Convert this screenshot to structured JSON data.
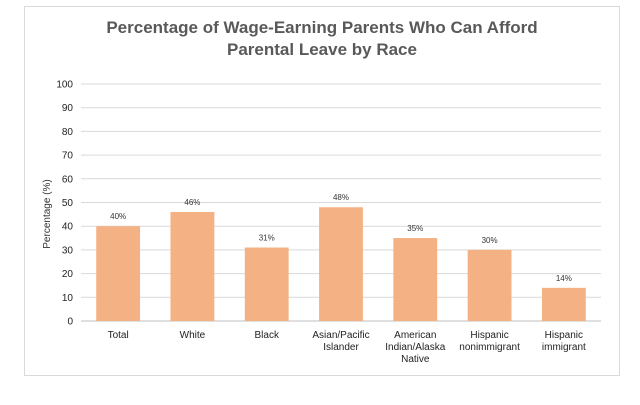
{
  "chart_data": {
    "type": "bar",
    "title_lines": [
      "Percentage of Wage-Earning Parents Who Can Afford",
      "Parental Leave by Race"
    ],
    "ylabel": "Percentage (%)",
    "xlabel": "",
    "ylim": [
      0,
      100
    ],
    "yticks": [
      0,
      10,
      20,
      30,
      40,
      50,
      60,
      70,
      80,
      90,
      100
    ],
    "grid": true,
    "legend": "none",
    "bar_color": "#f4b183",
    "categories": [
      [
        "Total"
      ],
      [
        "White"
      ],
      [
        "Black"
      ],
      [
        "Asian/Pacific",
        "Islander"
      ],
      [
        "American",
        "Indian/Alaska",
        "Native"
      ],
      [
        "Hispanic",
        "nonimmigrant"
      ],
      [
        "Hispanic",
        "immigrant"
      ]
    ],
    "values": [
      40,
      46,
      31,
      48,
      35,
      30,
      14
    ],
    "data_labels": [
      "40%",
      "46%",
      "31%",
      "48%",
      "35%",
      "30%",
      "14%"
    ]
  }
}
